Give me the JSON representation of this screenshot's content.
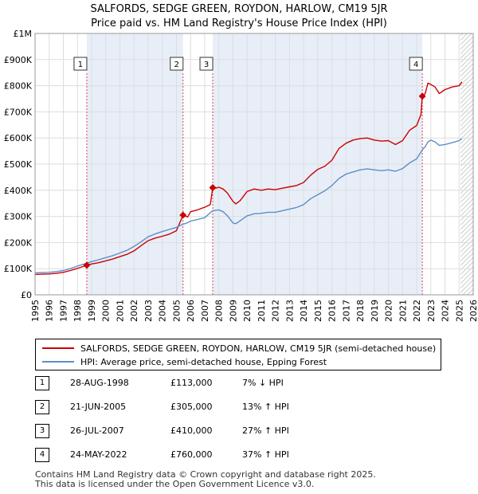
{
  "chart_data": {
    "type": "line",
    "title": "SALFORDS, SEDGE GREEN, ROYDON, HARLOW, CM19 5JR",
    "subtitle": "Price paid vs. HM Land Registry's House Price Index (HPI)",
    "xlim": [
      1995,
      2026
    ],
    "ylim": [
      0,
      1000000
    ],
    "x_ticks": [
      1995,
      1996,
      1997,
      1998,
      1999,
      2000,
      2001,
      2002,
      2003,
      2004,
      2005,
      2006,
      2007,
      2008,
      2009,
      2010,
      2011,
      2012,
      2013,
      2014,
      2015,
      2016,
      2017,
      2018,
      2019,
      2020,
      2021,
      2022,
      2023,
      2024,
      2025,
      2026
    ],
    "y_ticks": [
      {
        "value": 0,
        "label": "£0"
      },
      {
        "value": 100000,
        "label": "£100K"
      },
      {
        "value": 200000,
        "label": "£200K"
      },
      {
        "value": 300000,
        "label": "£300K"
      },
      {
        "value": 400000,
        "label": "£400K"
      },
      {
        "value": 500000,
        "label": "£500K"
      },
      {
        "value": 600000,
        "label": "£600K"
      },
      {
        "value": 700000,
        "label": "£700K"
      },
      {
        "value": 800000,
        "label": "£800K"
      },
      {
        "value": 900000,
        "label": "£900K"
      },
      {
        "value": 1000000,
        "label": "£1M"
      }
    ],
    "shaded_regions": [
      [
        1998.66,
        2005.47
      ],
      [
        2007.57,
        2022.4
      ]
    ],
    "future_hatch_start": 2025.1,
    "series": [
      {
        "name": "SALFORDS, SEDGE GREEN, ROYDON, HARLOW, CM19 5JR (semi-detached house)",
        "color": "#cc0000",
        "x": [
          1995,
          1995.5,
          1996,
          1996.5,
          1997,
          1997.5,
          1998,
          1998.66,
          1999,
          1999.5,
          2000,
          2000.5,
          2001,
          2001.5,
          2002,
          2002.5,
          2003,
          2003.5,
          2004,
          2004.5,
          2005,
          2005.47,
          2005.8,
          2006,
          2006.5,
          2007,
          2007.4,
          2007.57,
          2007.8,
          2008,
          2008.3,
          2008.6,
          2009,
          2009.2,
          2009.5,
          2010,
          2010.5,
          2011,
          2011.5,
          2012,
          2012.5,
          2013,
          2013.5,
          2014,
          2014.5,
          2015,
          2015.5,
          2016,
          2016.5,
          2017,
          2017.5,
          2018,
          2018.5,
          2019,
          2019.5,
          2020,
          2020.5,
          2021,
          2021.5,
          2022,
          2022.3,
          2022.4,
          2022.6,
          2022.8,
          2023,
          2023.3,
          2023.6,
          2024,
          2024.5,
          2025,
          2025.2
        ],
        "values": [
          78000,
          79000,
          80000,
          82000,
          86000,
          93000,
          101000,
          113000,
          118000,
          123000,
          130000,
          137000,
          146000,
          155000,
          168000,
          188000,
          207000,
          217000,
          224000,
          232000,
          245000,
          305000,
          298000,
          318000,
          325000,
          335000,
          345000,
          410000,
          408000,
          412000,
          405000,
          390000,
          358000,
          348000,
          360000,
          395000,
          405000,
          400000,
          405000,
          402000,
          408000,
          413000,
          418000,
          430000,
          458000,
          480000,
          492000,
          515000,
          560000,
          580000,
          592000,
          598000,
          600000,
          592000,
          588000,
          590000,
          575000,
          590000,
          630000,
          648000,
          690000,
          760000,
          770000,
          810000,
          805000,
          795000,
          770000,
          785000,
          795000,
          800000,
          815000
        ]
      },
      {
        "name": "HPI: Average price, semi-detached house, Epping Forest",
        "color": "#5b8fc7",
        "x": [
          1995,
          1995.5,
          1996,
          1996.5,
          1997,
          1997.5,
          1998,
          1998.66,
          1999,
          1999.5,
          2000,
          2000.5,
          2001,
          2001.5,
          2002,
          2002.5,
          2003,
          2003.5,
          2004,
          2004.5,
          2005,
          2005.47,
          2005.8,
          2006,
          2006.5,
          2007,
          2007.57,
          2008,
          2008.3,
          2008.6,
          2009,
          2009.2,
          2009.5,
          2010,
          2010.5,
          2011,
          2011.5,
          2012,
          2012.5,
          2013,
          2013.5,
          2014,
          2014.5,
          2015,
          2015.5,
          2016,
          2016.5,
          2017,
          2017.5,
          2018,
          2018.5,
          2019,
          2019.5,
          2020,
          2020.5,
          2021,
          2021.5,
          2022,
          2022.4,
          2022.6,
          2022.8,
          2023,
          2023.3,
          2023.6,
          2024,
          2024.5,
          2025,
          2025.2
        ],
        "values": [
          84000,
          85000,
          86000,
          89000,
          93000,
          100000,
          110000,
          121000,
          127000,
          134000,
          142000,
          150000,
          160000,
          170000,
          185000,
          203000,
          222000,
          233000,
          242000,
          250000,
          258000,
          270000,
          276000,
          282000,
          288000,
          295000,
          322000,
          325000,
          318000,
          303000,
          275000,
          272000,
          283000,
          302000,
          310000,
          312000,
          316000,
          316000,
          322000,
          328000,
          334000,
          345000,
          368000,
          383000,
          398000,
          418000,
          445000,
          462000,
          470000,
          478000,
          482000,
          478000,
          475000,
          478000,
          473000,
          483000,
          505000,
          520000,
          555000,
          567000,
          585000,
          592000,
          585000,
          572000,
          575000,
          582000,
          590000,
          598000
        ]
      }
    ],
    "sales": [
      {
        "label": "1",
        "x": 1998.66,
        "value": 113000,
        "date": "28-AUG-1998",
        "price": "£113,000",
        "hpi": "7% ↓ HPI"
      },
      {
        "label": "2",
        "x": 2005.47,
        "value": 305000,
        "date": "21-JUN-2005",
        "price": "£305,000",
        "hpi": "13% ↑ HPI"
      },
      {
        "label": "3",
        "x": 2007.57,
        "value": 410000,
        "date": "26-JUL-2007",
        "price": "£410,000",
        "hpi": "27% ↑ HPI"
      },
      {
        "label": "4",
        "x": 2022.4,
        "value": 760000,
        "date": "24-MAY-2022",
        "price": "£760,000",
        "hpi": "37% ↑ HPI"
      }
    ]
  },
  "legend": {
    "property": "SALFORDS, SEDGE GREEN, ROYDON, HARLOW, CM19 5JR (semi-detached house)",
    "hpi": "HPI: Average price, semi-detached house, Epping Forest"
  },
  "footer": {
    "line1": "Contains HM Land Registry data © Crown copyright and database right 2025.",
    "line2": "This data is licensed under the Open Government Licence v3.0."
  }
}
